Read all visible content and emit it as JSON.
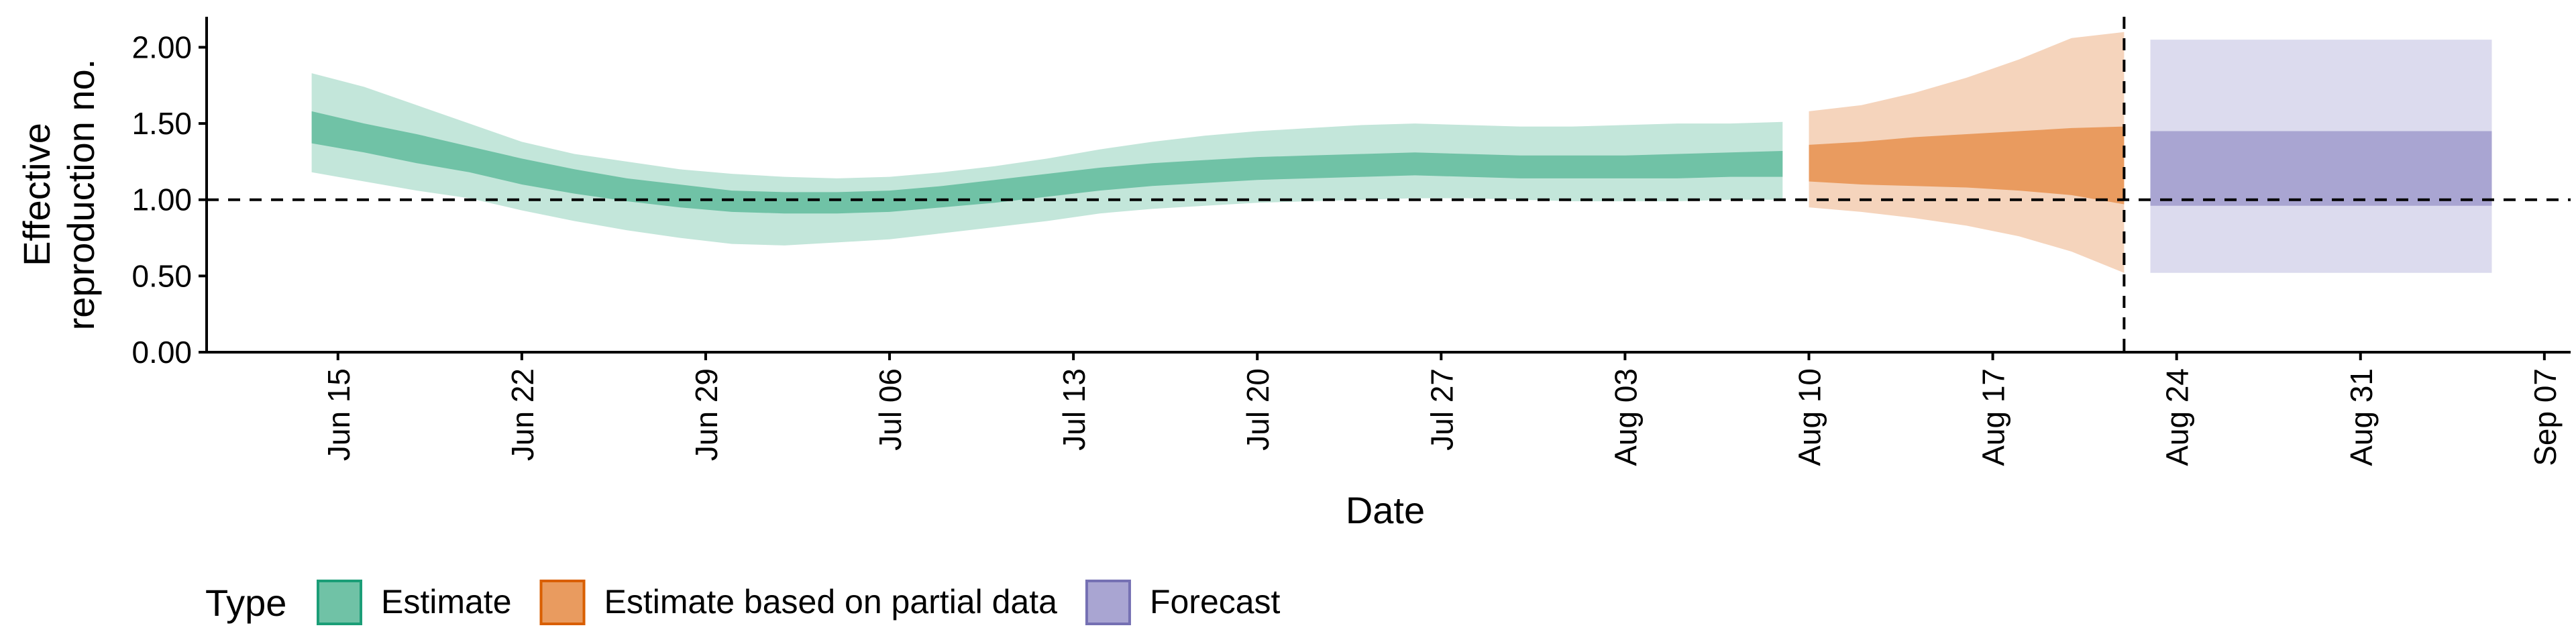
{
  "chart_data": {
    "type": "area",
    "xlabel": "Date",
    "ylabel_lines": [
      "Effective",
      "reproduction no."
    ],
    "ylim": [
      0,
      2.2
    ],
    "xlim": [
      "2020-06-10",
      "2020-09-08"
    ],
    "y_ticks": [
      {
        "value": 0,
        "label": "0.00"
      },
      {
        "value": 0.5,
        "label": "0.50"
      },
      {
        "value": 1,
        "label": "1.00"
      },
      {
        "value": 1.5,
        "label": "1.50"
      },
      {
        "value": 2,
        "label": "2.00"
      }
    ],
    "x_ticks": [
      {
        "date": "2020-06-15",
        "label": "Jun 15"
      },
      {
        "date": "2020-06-22",
        "label": "Jun 22"
      },
      {
        "date": "2020-06-29",
        "label": "Jun 29"
      },
      {
        "date": "2020-07-06",
        "label": "Jul 06"
      },
      {
        "date": "2020-07-13",
        "label": "Jul 13"
      },
      {
        "date": "2020-07-20",
        "label": "Jul 20"
      },
      {
        "date": "2020-07-27",
        "label": "Jul 27"
      },
      {
        "date": "2020-08-03",
        "label": "Aug 03"
      },
      {
        "date": "2020-08-10",
        "label": "Aug 10"
      },
      {
        "date": "2020-08-17",
        "label": "Aug 17"
      },
      {
        "date": "2020-08-24",
        "label": "Aug 24"
      },
      {
        "date": "2020-08-31",
        "label": "Aug 31"
      },
      {
        "date": "2020-09-07",
        "label": "Sep 07"
      }
    ],
    "reference_line_y": 1.0,
    "vertical_line_date": "2020-08-22",
    "legend": {
      "title": "Type",
      "placement": "bottom-left",
      "items": [
        {
          "label": "Estimate",
          "fill": "#70c2a6",
          "stroke": "#1b9e77"
        },
        {
          "label": "Estimate based on partial data",
          "fill": "#e99b5f",
          "stroke": "#d95f02"
        },
        {
          "label": "Forecast",
          "fill": "#a9a5d2",
          "stroke": "#7570b3"
        }
      ]
    },
    "series": [
      {
        "name": "Estimate",
        "color_outer": "#c3e6da",
        "color_inner": "#70c2a6",
        "points": [
          {
            "date": "2020-06-14",
            "lo90": 1.18,
            "hi90": 1.83,
            "lo50": 1.37,
            "hi50": 1.58
          },
          {
            "date": "2020-06-16",
            "lo90": 1.12,
            "hi90": 1.74,
            "lo50": 1.31,
            "hi50": 1.5
          },
          {
            "date": "2020-06-18",
            "lo90": 1.06,
            "hi90": 1.62,
            "lo50": 1.24,
            "hi50": 1.43
          },
          {
            "date": "2020-06-20",
            "lo90": 1.01,
            "hi90": 1.5,
            "lo50": 1.18,
            "hi50": 1.35
          },
          {
            "date": "2020-06-22",
            "lo90": 0.93,
            "hi90": 1.38,
            "lo50": 1.1,
            "hi50": 1.27
          },
          {
            "date": "2020-06-24",
            "lo90": 0.86,
            "hi90": 1.3,
            "lo50": 1.04,
            "hi50": 1.2
          },
          {
            "date": "2020-06-26",
            "lo90": 0.8,
            "hi90": 1.25,
            "lo50": 0.99,
            "hi50": 1.14
          },
          {
            "date": "2020-06-28",
            "lo90": 0.75,
            "hi90": 1.2,
            "lo50": 0.95,
            "hi50": 1.1
          },
          {
            "date": "2020-06-30",
            "lo90": 0.71,
            "hi90": 1.17,
            "lo50": 0.92,
            "hi50": 1.06
          },
          {
            "date": "2020-07-02",
            "lo90": 0.7,
            "hi90": 1.15,
            "lo50": 0.91,
            "hi50": 1.05
          },
          {
            "date": "2020-07-04",
            "lo90": 0.72,
            "hi90": 1.14,
            "lo50": 0.91,
            "hi50": 1.05
          },
          {
            "date": "2020-07-06",
            "lo90": 0.74,
            "hi90": 1.15,
            "lo50": 0.92,
            "hi50": 1.06
          },
          {
            "date": "2020-07-08",
            "lo90": 0.78,
            "hi90": 1.18,
            "lo50": 0.95,
            "hi50": 1.09
          },
          {
            "date": "2020-07-10",
            "lo90": 0.82,
            "hi90": 1.22,
            "lo50": 0.98,
            "hi50": 1.13
          },
          {
            "date": "2020-07-12",
            "lo90": 0.86,
            "hi90": 1.27,
            "lo50": 1.02,
            "hi50": 1.17
          },
          {
            "date": "2020-07-14",
            "lo90": 0.91,
            "hi90": 1.33,
            "lo50": 1.06,
            "hi50": 1.21
          },
          {
            "date": "2020-07-16",
            "lo90": 0.94,
            "hi90": 1.38,
            "lo50": 1.09,
            "hi50": 1.24
          },
          {
            "date": "2020-07-18",
            "lo90": 0.96,
            "hi90": 1.42,
            "lo50": 1.11,
            "hi50": 1.26
          },
          {
            "date": "2020-07-20",
            "lo90": 0.98,
            "hi90": 1.45,
            "lo50": 1.13,
            "hi50": 1.28
          },
          {
            "date": "2020-07-22",
            "lo90": 0.99,
            "hi90": 1.47,
            "lo50": 1.14,
            "hi50": 1.29
          },
          {
            "date": "2020-07-24",
            "lo90": 1.0,
            "hi90": 1.49,
            "lo50": 1.15,
            "hi50": 1.3
          },
          {
            "date": "2020-07-26",
            "lo90": 1.01,
            "hi90": 1.5,
            "lo50": 1.16,
            "hi50": 1.31
          },
          {
            "date": "2020-07-28",
            "lo90": 1.01,
            "hi90": 1.49,
            "lo50": 1.15,
            "hi50": 1.3
          },
          {
            "date": "2020-07-30",
            "lo90": 1.0,
            "hi90": 1.48,
            "lo50": 1.14,
            "hi50": 1.29
          },
          {
            "date": "2020-08-01",
            "lo90": 0.99,
            "hi90": 1.48,
            "lo50": 1.14,
            "hi50": 1.29
          },
          {
            "date": "2020-08-03",
            "lo90": 0.99,
            "hi90": 1.49,
            "lo50": 1.14,
            "hi50": 1.29
          },
          {
            "date": "2020-08-05",
            "lo90": 0.99,
            "hi90": 1.5,
            "lo50": 1.14,
            "hi50": 1.3
          },
          {
            "date": "2020-08-07",
            "lo90": 1.0,
            "hi90": 1.5,
            "lo50": 1.15,
            "hi50": 1.31
          },
          {
            "date": "2020-08-09",
            "lo90": 1.0,
            "hi90": 1.51,
            "lo50": 1.15,
            "hi50": 1.32
          }
        ]
      },
      {
        "name": "Estimate based on partial data",
        "color_outer": "#f5d4bc",
        "color_inner": "#e99b5f",
        "points": [
          {
            "date": "2020-08-10",
            "lo90": 0.95,
            "hi90": 1.58,
            "lo50": 1.12,
            "hi50": 1.36
          },
          {
            "date": "2020-08-12",
            "lo90": 0.92,
            "hi90": 1.62,
            "lo50": 1.1,
            "hi50": 1.38
          },
          {
            "date": "2020-08-14",
            "lo90": 0.88,
            "hi90": 1.7,
            "lo50": 1.09,
            "hi50": 1.41
          },
          {
            "date": "2020-08-16",
            "lo90": 0.83,
            "hi90": 1.8,
            "lo50": 1.08,
            "hi50": 1.43
          },
          {
            "date": "2020-08-18",
            "lo90": 0.76,
            "hi90": 1.92,
            "lo50": 1.06,
            "hi50": 1.45
          },
          {
            "date": "2020-08-20",
            "lo90": 0.66,
            "hi90": 2.06,
            "lo50": 1.03,
            "hi50": 1.47
          },
          {
            "date": "2020-08-22",
            "lo90": 0.52,
            "hi90": 2.1,
            "lo50": 0.97,
            "hi50": 1.48
          }
        ]
      },
      {
        "name": "Forecast",
        "color_outer": "#dcdbee",
        "color_inner": "#a9a5d2",
        "points": [
          {
            "date": "2020-08-23",
            "lo90": 0.52,
            "hi90": 2.05,
            "lo50": 0.96,
            "hi50": 1.45
          },
          {
            "date": "2020-09-05",
            "lo90": 0.52,
            "hi90": 2.05,
            "lo50": 0.96,
            "hi50": 1.45
          }
        ]
      }
    ]
  }
}
